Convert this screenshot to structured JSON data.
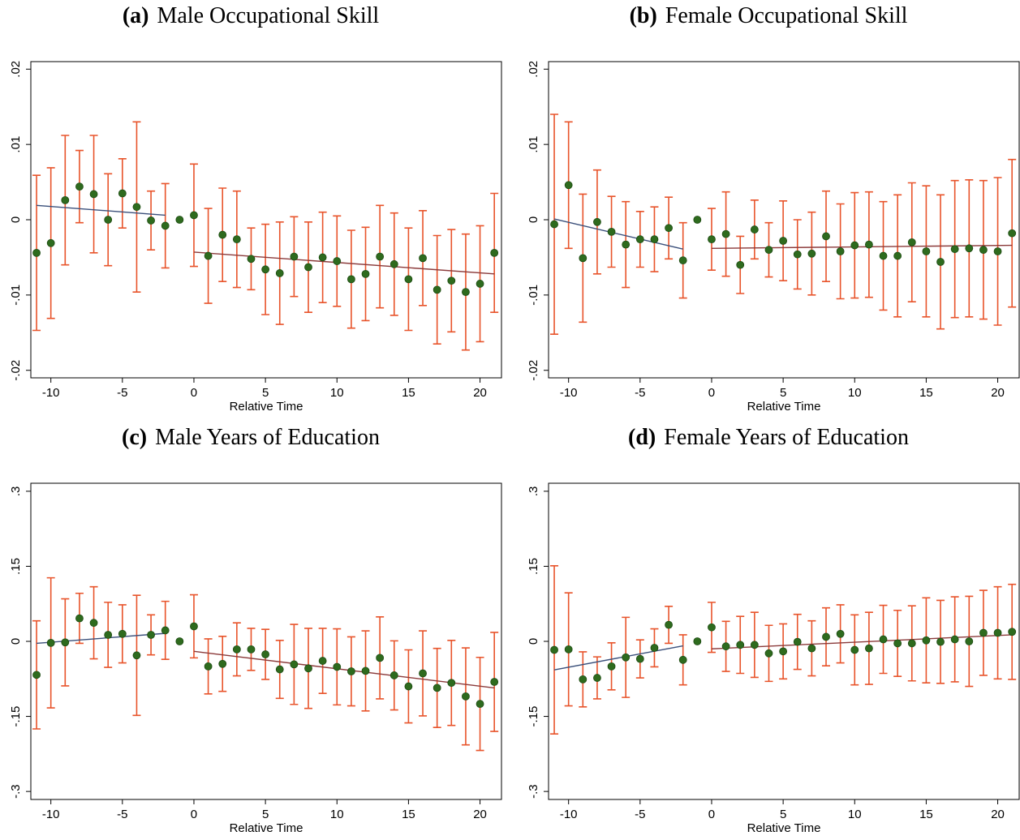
{
  "chart_data": [
    {
      "type": "errorbar",
      "panel": "(a)",
      "title": "Male Occupational Skill",
      "xlabel": "Relative Time",
      "x": [
        -11,
        -10,
        -9,
        -8,
        -7,
        -6,
        -5,
        -4,
        -3,
        -2,
        -1,
        0,
        1,
        2,
        3,
        4,
        5,
        6,
        7,
        8,
        9,
        10,
        11,
        12,
        13,
        14,
        15,
        16,
        17,
        18,
        19,
        20,
        21
      ],
      "values": [
        -0.0044,
        -0.0031,
        0.0026,
        0.0044,
        0.0034,
        0.0,
        0.0035,
        0.0017,
        -0.0001,
        -0.0008,
        0,
        0.0006,
        -0.0048,
        -0.002,
        -0.0026,
        -0.0052,
        -0.0066,
        -0.0071,
        -0.0049,
        -0.0063,
        -0.005,
        -0.0055,
        -0.0079,
        -0.0072,
        -0.0049,
        -0.0059,
        -0.0079,
        -0.0051,
        -0.0093,
        -0.0081,
        -0.0096,
        -0.0085,
        -0.0044
      ],
      "errors": [
        0.0103,
        0.01,
        0.0086,
        0.0048,
        0.0078,
        0.0061,
        0.0046,
        0.0113,
        0.0039,
        0.0056,
        null,
        0.0068,
        0.0063,
        0.0062,
        0.0064,
        0.0041,
        0.006,
        0.0068,
        0.0053,
        0.006,
        0.006,
        0.006,
        0.0065,
        0.0062,
        0.0068,
        0.0068,
        0.0068,
        0.0063,
        0.0072,
        0.0068,
        0.0077,
        0.0077,
        0.0079
      ],
      "point_color": "#2e6b1e",
      "error_color": "#e8542b",
      "fits": [
        {
          "x": [
            -11,
            -2
          ],
          "values": [
            0.0019,
            0.0006
          ],
          "color": "#3a4f7a"
        },
        {
          "x": [
            0,
            21
          ],
          "values": [
            -0.0043,
            -0.0072
          ],
          "color": "#8b3a3a"
        }
      ],
      "xlim": [
        -11.4,
        21.5
      ],
      "xticks": [
        -10,
        -5,
        0,
        5,
        10,
        15,
        20
      ],
      "ylim": [
        -0.021,
        0.021
      ],
      "yticks": [
        {
          "value": -0.02,
          "label": "-.02"
        },
        {
          "value": -0.01,
          "label": "-.01"
        },
        0,
        {
          "value": 0.01,
          "label": ".01"
        },
        {
          "value": 0.02,
          "label": ".02"
        }
      ]
    },
    {
      "type": "errorbar",
      "panel": "(b)",
      "title": "Female Occupational Skill",
      "xlabel": "Relative Time",
      "x": [
        -11,
        -10,
        -9,
        -8,
        -7,
        -6,
        -5,
        -4,
        -3,
        -2,
        -1,
        0,
        1,
        2,
        3,
        4,
        5,
        6,
        7,
        8,
        9,
        10,
        11,
        12,
        13,
        14,
        15,
        16,
        17,
        18,
        19,
        20,
        21
      ],
      "values": [
        -0.0006,
        0.0046,
        -0.0051,
        -0.0003,
        -0.0016,
        -0.0033,
        -0.0026,
        -0.0026,
        -0.0011,
        -0.0054,
        0,
        -0.0026,
        -0.0019,
        -0.006,
        -0.0013,
        -0.004,
        -0.0028,
        -0.0046,
        -0.0045,
        -0.0022,
        -0.0042,
        -0.0034,
        -0.0033,
        -0.0048,
        -0.0048,
        -0.003,
        -0.0042,
        -0.0056,
        -0.0039,
        -0.0038,
        -0.004,
        -0.0042,
        -0.0018
      ],
      "errors": [
        0.0146,
        0.0084,
        0.0085,
        0.0069,
        0.0047,
        0.0057,
        0.0037,
        0.0043,
        0.0041,
        0.005,
        null,
        0.0041,
        0.0056,
        0.0038,
        0.0039,
        0.0036,
        0.0053,
        0.0046,
        0.0055,
        0.006,
        0.0063,
        0.007,
        0.007,
        0.0072,
        0.0081,
        0.0079,
        0.0087,
        0.0089,
        0.0091,
        0.0091,
        0.0092,
        0.0098,
        0.0098
      ],
      "point_color": "#2e6b1e",
      "error_color": "#e8542b",
      "fits": [
        {
          "x": [
            -11,
            -2
          ],
          "values": [
            0.0001,
            -0.0039
          ],
          "color": "#3a4f7a"
        },
        {
          "x": [
            0,
            21
          ],
          "values": [
            -0.0038,
            -0.0034
          ],
          "color": "#8b3a3a"
        }
      ],
      "xlim": [
        -11.4,
        21.5
      ],
      "xticks": [
        -10,
        -5,
        0,
        5,
        10,
        15,
        20
      ],
      "ylim": [
        -0.021,
        0.021
      ],
      "yticks": [
        {
          "value": -0.02,
          "label": "-.02"
        },
        {
          "value": -0.01,
          "label": "-.01"
        },
        0,
        {
          "value": 0.01,
          "label": ".01"
        },
        {
          "value": 0.02,
          "label": ".02"
        }
      ]
    },
    {
      "type": "errorbar",
      "panel": "(c)",
      "title": "Male Years of Education",
      "xlabel": "Relative Time",
      "x": [
        -11,
        -10,
        -9,
        -8,
        -7,
        -6,
        -5,
        -4,
        -3,
        -2,
        -1,
        0,
        1,
        2,
        3,
        4,
        5,
        6,
        7,
        8,
        9,
        10,
        11,
        12,
        13,
        14,
        15,
        16,
        17,
        18,
        19,
        20,
        21
      ],
      "values": [
        -0.067,
        -0.003,
        -0.002,
        0.046,
        0.037,
        0.013,
        0.015,
        -0.028,
        0.013,
        0.022,
        0,
        0.03,
        -0.05,
        -0.045,
        -0.016,
        -0.016,
        -0.026,
        -0.056,
        -0.046,
        -0.054,
        -0.039,
        -0.051,
        -0.06,
        -0.059,
        -0.033,
        -0.068,
        -0.09,
        -0.064,
        -0.093,
        -0.083,
        -0.11,
        -0.125,
        -0.081
      ],
      "errors": [
        0.108,
        0.13,
        0.087,
        0.05,
        0.072,
        0.065,
        0.058,
        0.12,
        0.04,
        0.058,
        null,
        0.063,
        0.055,
        0.055,
        0.053,
        0.042,
        0.05,
        0.058,
        0.08,
        0.08,
        0.065,
        0.076,
        0.069,
        0.08,
        0.082,
        0.069,
        0.073,
        0.085,
        0.079,
        0.085,
        0.097,
        0.093,
        0.099
      ],
      "point_color": "#2e6b1e",
      "error_color": "#e8542b",
      "fits": [
        {
          "x": [
            -11,
            -2
          ],
          "values": [
            -0.004,
            0.016
          ],
          "color": "#3a4f7a"
        },
        {
          "x": [
            0,
            21
          ],
          "values": [
            -0.02,
            -0.093
          ],
          "color": "#8b3a3a"
        }
      ],
      "xlim": [
        -11.4,
        21.5
      ],
      "xticks": [
        -10,
        -5,
        0,
        5,
        10,
        15,
        20
      ],
      "ylim": [
        -0.316,
        0.316
      ],
      "yticks": [
        {
          "value": -0.3,
          "label": "-.3"
        },
        {
          "value": -0.15,
          "label": "-.15"
        },
        0,
        {
          "value": 0.15,
          "label": ".15"
        },
        {
          "value": 0.3,
          "label": ".3"
        }
      ]
    },
    {
      "type": "errorbar",
      "panel": "(d)",
      "title": "Female Years of Education",
      "xlabel": "Relative Time",
      "x": [
        -11,
        -10,
        -9,
        -8,
        -7,
        -6,
        -5,
        -4,
        -3,
        -2,
        -1,
        0,
        1,
        2,
        3,
        4,
        5,
        6,
        7,
        8,
        9,
        10,
        11,
        12,
        13,
        14,
        15,
        16,
        17,
        18,
        19,
        20,
        21
      ],
      "values": [
        -0.017,
        -0.016,
        -0.076,
        -0.073,
        -0.05,
        -0.032,
        -0.035,
        -0.013,
        0.033,
        -0.037,
        0,
        0.028,
        -0.01,
        -0.007,
        -0.007,
        -0.024,
        -0.02,
        -0.001,
        -0.014,
        0.009,
        0.015,
        -0.017,
        -0.014,
        0.004,
        -0.004,
        -0.004,
        0.002,
        -0.001,
        0.004,
        0.0,
        0.017,
        0.017,
        0.019
      ],
      "errors": [
        0.168,
        0.113,
        0.055,
        0.042,
        0.047,
        0.08,
        0.038,
        0.038,
        0.037,
        0.05,
        null,
        0.05,
        0.05,
        0.057,
        0.065,
        0.056,
        0.055,
        0.055,
        0.055,
        0.058,
        0.058,
        0.07,
        0.072,
        0.068,
        0.066,
        0.075,
        0.085,
        0.083,
        0.085,
        0.09,
        0.085,
        0.092,
        0.095
      ],
      "point_color": "#2e6b1e",
      "error_color": "#e8542b",
      "fits": [
        {
          "x": [
            -11,
            -2
          ],
          "values": [
            -0.057,
            -0.009
          ],
          "color": "#3a4f7a"
        },
        {
          "x": [
            0,
            21
          ],
          "values": [
            -0.015,
            0.013
          ],
          "color": "#8b3a3a"
        }
      ],
      "xlim": [
        -11.4,
        21.5
      ],
      "xticks": [
        -10,
        -5,
        0,
        5,
        10,
        15,
        20
      ],
      "ylim": [
        -0.316,
        0.316
      ],
      "yticks": [
        {
          "value": -0.3,
          "label": "-.3"
        },
        {
          "value": -0.15,
          "label": "-.15"
        },
        0,
        {
          "value": 0.15,
          "label": ".15"
        },
        {
          "value": 0.3,
          "label": ".3"
        }
      ]
    }
  ]
}
